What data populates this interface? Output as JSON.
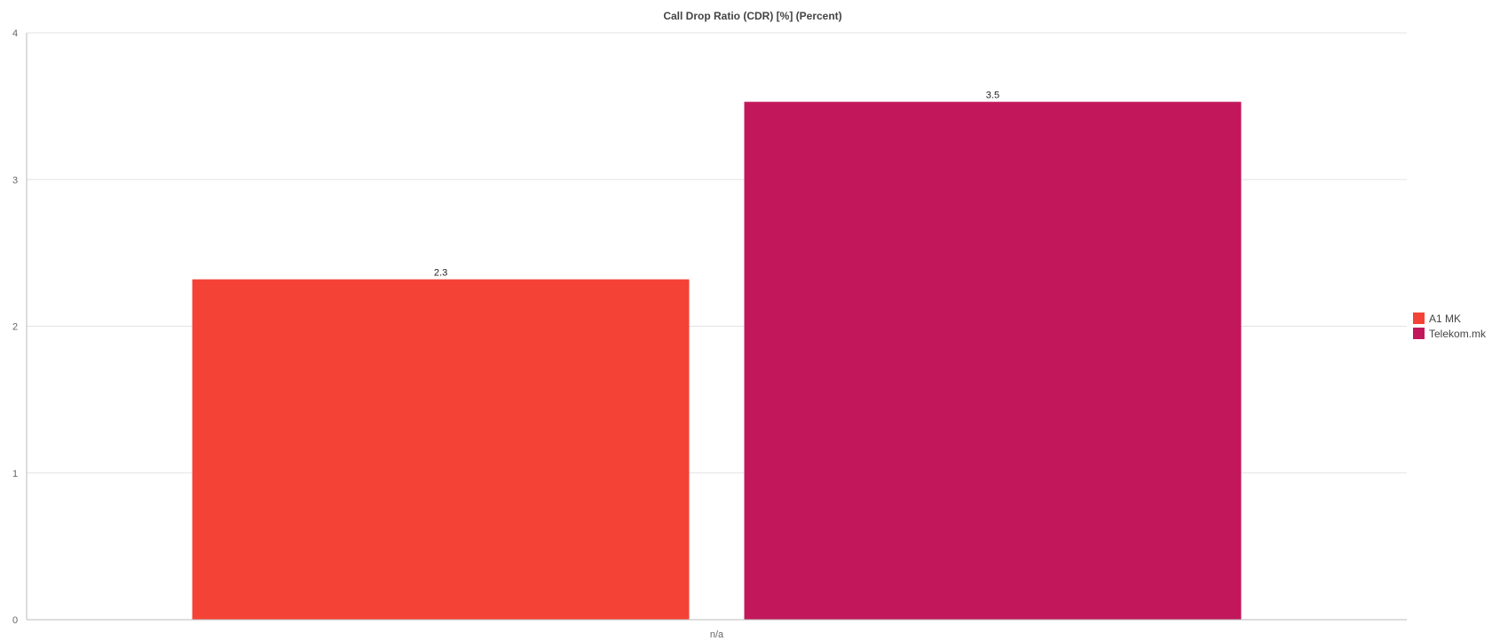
{
  "chart_data": {
    "type": "bar",
    "title": "Call Drop Ratio (CDR) [%] (Percent)",
    "categories": [
      "n/a"
    ],
    "series": [
      {
        "name": "A1 MK",
        "values": [
          2.32
        ],
        "label": "2.3",
        "color": "#f44336"
      },
      {
        "name": "Telekom.mk",
        "values": [
          3.53
        ],
        "label": "3.5",
        "color": "#c2185b"
      }
    ],
    "xlabel": "",
    "ylabel": "",
    "ylim": [
      0,
      4
    ],
    "yticks": [
      "0",
      "1",
      "2",
      "3",
      "4"
    ],
    "grid": true,
    "legend_position": "right"
  }
}
